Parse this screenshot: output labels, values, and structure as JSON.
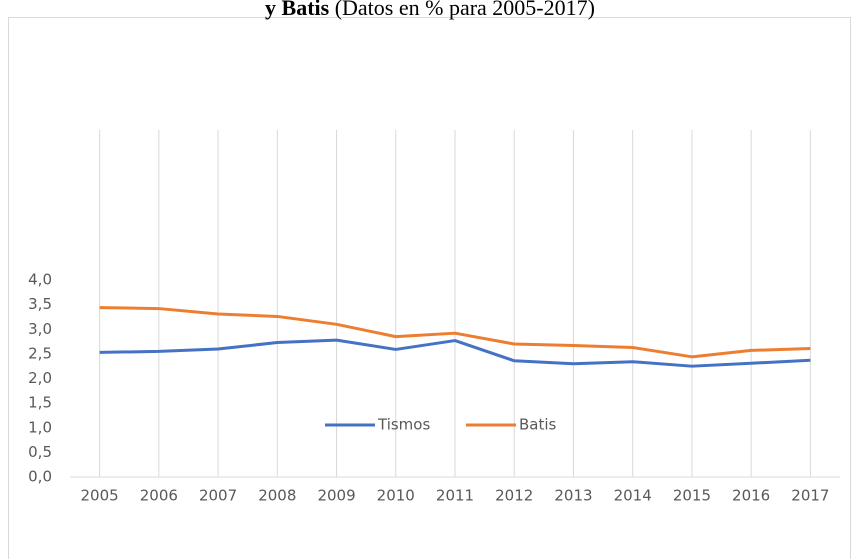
{
  "chart_data": {
    "type": "line",
    "title_bold": "y Batis",
    "title": "(Datos en % para 2005-2017)",
    "categories": [
      "2005",
      "2006",
      "2007",
      "2008",
      "2009",
      "2010",
      "2011",
      "2012",
      "2013",
      "2014",
      "2015",
      "2016",
      "2017"
    ],
    "series": [
      {
        "name": "Tismos",
        "color": "#4472c4",
        "values": [
          2.53,
          2.55,
          2.6,
          2.73,
          2.78,
          2.59,
          2.77,
          2.36,
          2.3,
          2.34,
          2.25,
          2.31,
          2.37
        ]
      },
      {
        "name": "Batis",
        "color": "#ed7d31",
        "values": [
          3.44,
          3.42,
          3.31,
          3.26,
          3.1,
          2.85,
          2.92,
          2.7,
          2.67,
          2.63,
          2.44,
          2.57,
          2.61
        ]
      }
    ],
    "ylim": [
      0,
      4
    ],
    "yticks": [
      {
        "value": 0,
        "label": "0,0"
      },
      {
        "value": 0.5,
        "label": "0,5"
      },
      {
        "value": 1,
        "label": "1,0"
      },
      {
        "value": 1.5,
        "label": "1,5"
      },
      {
        "value": 2,
        "label": "2,0"
      },
      {
        "value": 2.5,
        "label": "2,5"
      },
      {
        "value": 3,
        "label": "3,0"
      },
      {
        "value": 3.5,
        "label": "3,5"
      },
      {
        "value": 4,
        "label": "4,0"
      }
    ],
    "grid": "vertical"
  }
}
